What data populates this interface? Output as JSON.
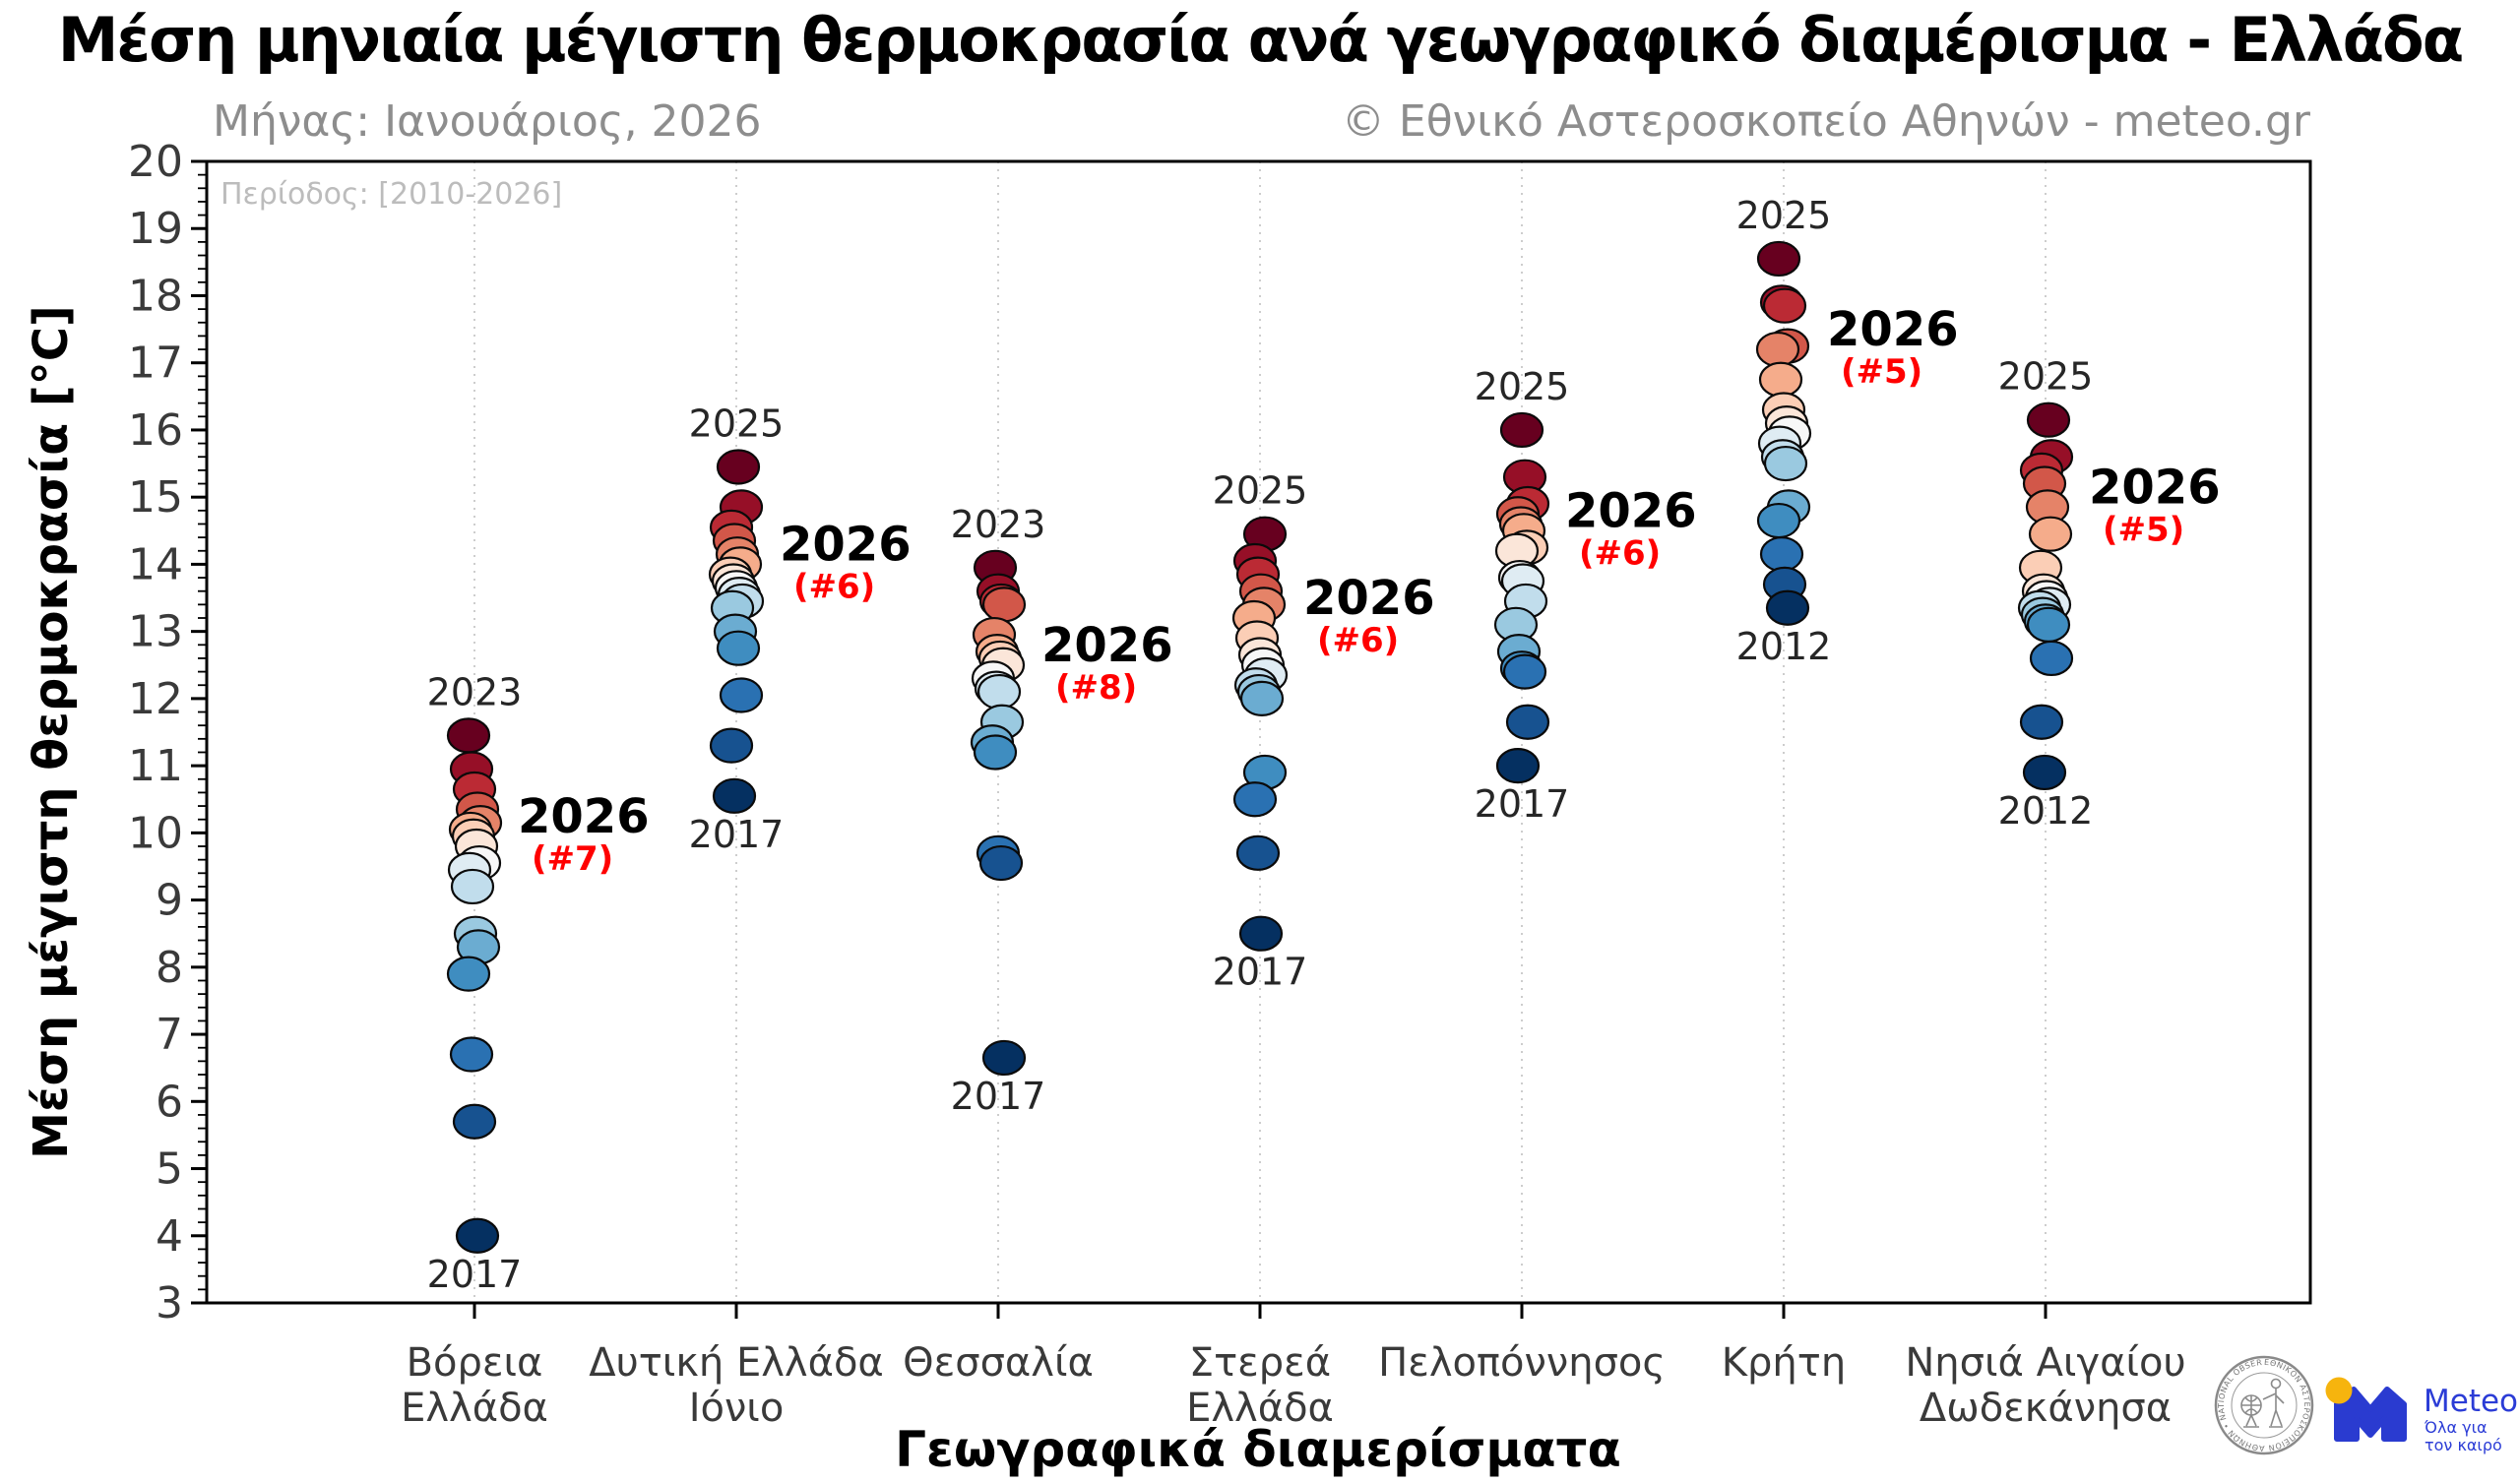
{
  "chart_data": {
    "type": "scatter",
    "title": "Μέση μηνιαία μέγιστη θερμοκρασία ανά γεωγραφικό διαμέρισμα - Ελλάδα",
    "subtitle_left": "Μήνας: Ιανουάριος, 2026",
    "subtitle_right": "© Εθνικό Αστεροσκοπείο Αθηνών - meteo.gr",
    "period_note": "Περίοδος: [2010-2026]",
    "xlabel": "Γεωγραφικά διαμερίσματα",
    "ylabel": "Μέση μέγιστη θερμοκρασία [°C]",
    "ylim": [
      3,
      20
    ],
    "yticks": [
      20,
      19,
      18,
      17,
      16,
      15,
      14,
      13,
      12,
      11,
      10,
      9,
      8,
      7,
      6,
      5,
      4,
      3
    ],
    "grid": "vertical-dotted",
    "legend": "none",
    "year_span": "2010-2026",
    "annotation_2026_label": "2026",
    "categories": [
      "Βόρεια Ελλάδα",
      "Δυτική Ελλάδα Ιόνιο",
      "Θεσσαλία",
      "Στερεά Ελλάδα",
      "Πελοπόννησος",
      "Κρήτη",
      "Νησιά Αιγαίου Δωδεκάνησα"
    ],
    "regions": [
      {
        "name": "Βόρεια Ελλάδα",
        "label_lines": [
          "Βόρεια",
          "Ελλάδα"
        ],
        "values": [
          11.45,
          10.95,
          10.65,
          10.35,
          10.15,
          10.05,
          9.95,
          9.8,
          9.55,
          9.45,
          9.2,
          8.5,
          8.3,
          7.9,
          6.7,
          5.7,
          4.0
        ],
        "max_year": "2023",
        "min_year": "2017",
        "rank_2026": 7,
        "rank_2026_label": "(#7)",
        "value_2026": 9.95
      },
      {
        "name": "Δυτική Ελλάδα Ιόνιο",
        "label_lines": [
          "Δυτική Ελλάδα",
          "Ιόνιο"
        ],
        "values": [
          15.45,
          14.85,
          14.55,
          14.35,
          14.15,
          14.0,
          13.85,
          13.75,
          13.65,
          13.55,
          13.45,
          13.35,
          13.0,
          12.75,
          12.05,
          11.3,
          10.55
        ],
        "max_year": "2025",
        "min_year": "2017",
        "rank_2026": 6,
        "rank_2026_label": "(#6)",
        "value_2026": 14.0
      },
      {
        "name": "Θεσσαλία",
        "label_lines": [
          "Θεσσαλία"
        ],
        "values": [
          13.95,
          13.6,
          13.45,
          13.4,
          12.95,
          12.7,
          12.6,
          12.5,
          12.3,
          12.15,
          12.1,
          11.65,
          11.35,
          11.2,
          9.7,
          9.55,
          6.65
        ],
        "max_year": "2023",
        "min_year": "2017",
        "rank_2026": 8,
        "rank_2026_label": "(#8)",
        "value_2026": 12.5
      },
      {
        "name": "Στερεά Ελλάδα",
        "label_lines": [
          "Στερεά",
          "Ελλάδα"
        ],
        "values": [
          14.45,
          14.05,
          13.85,
          13.6,
          13.4,
          13.2,
          12.9,
          12.65,
          12.5,
          12.35,
          12.2,
          12.1,
          12.0,
          10.9,
          10.5,
          9.7,
          8.5
        ],
        "max_year": "2025",
        "min_year": "2017",
        "rank_2026": 6,
        "rank_2026_label": "(#6)",
        "value_2026": 13.2
      },
      {
        "name": "Πελοπόννησος",
        "label_lines": [
          "Πελοπόννησος"
        ],
        "values": [
          16.0,
          15.3,
          14.9,
          14.75,
          14.6,
          14.5,
          14.25,
          14.2,
          13.8,
          13.75,
          13.45,
          13.1,
          12.7,
          12.45,
          12.4,
          11.65,
          11.0
        ],
        "max_year": "2025",
        "min_year": "2017",
        "rank_2026": 6,
        "rank_2026_label": "(#6)",
        "value_2026": 14.5
      },
      {
        "name": "Κρήτη",
        "label_lines": [
          "Κρήτη"
        ],
        "values": [
          18.55,
          17.9,
          17.85,
          17.25,
          17.2,
          16.75,
          16.3,
          16.1,
          15.95,
          15.8,
          15.6,
          15.5,
          14.85,
          14.65,
          14.15,
          13.7,
          13.35
        ],
        "max_year": "2025",
        "min_year": "2012",
        "rank_2026": 5,
        "rank_2026_label": "(#5)",
        "value_2026": 17.2
      },
      {
        "name": "Νησιά Αιγαίου Δωδεκάνησα",
        "label_lines": [
          "Νησιά Αιγαίου",
          "Δωδεκάνησα"
        ],
        "values": [
          16.15,
          15.6,
          15.4,
          15.2,
          14.85,
          14.45,
          13.95,
          13.6,
          13.5,
          13.4,
          13.35,
          13.25,
          13.15,
          13.1,
          12.6,
          11.65,
          10.9
        ],
        "max_year": "2025",
        "min_year": "2012",
        "rank_2026": 5,
        "rank_2026_label": "(#5)",
        "value_2026": 14.85
      }
    ],
    "colormap_warm_to_cold": [
      "#67001f",
      "#b2182b",
      "#d6604d",
      "#f4a582",
      "#fddbc7",
      "#f7f7f7",
      "#d1e5f0",
      "#92c5de",
      "#4393c3",
      "#2166ac",
      "#053061"
    ]
  },
  "colors": {
    "annotation_red": "#ff0000",
    "annotation_year": "#262626",
    "tick_label": "#3a3a3a",
    "subtitle_gray": "#8d8d8d",
    "period_gray": "#bcbcbc",
    "grid_gray": "#cdcdcd",
    "dot_outline": "#0a0a0a",
    "meteo_blue": "#2a3bd0",
    "meteo_yellow": "#f6b40e",
    "seal_gray": "#8a8a8a"
  },
  "logos": {
    "seal_ring_text": "ΕΘΝΙΚΟΝ ΑΣΤΕΡΟΣΚΟΠΕΙΟΝ ΑΘΗΝΩΝ • NATIONAL OBSERVATORY OF ATHENS •",
    "meteo_name": "Meteo",
    "meteo_tagline_line1": "Όλα για",
    "meteo_tagline_line2": "τον καιρό"
  }
}
